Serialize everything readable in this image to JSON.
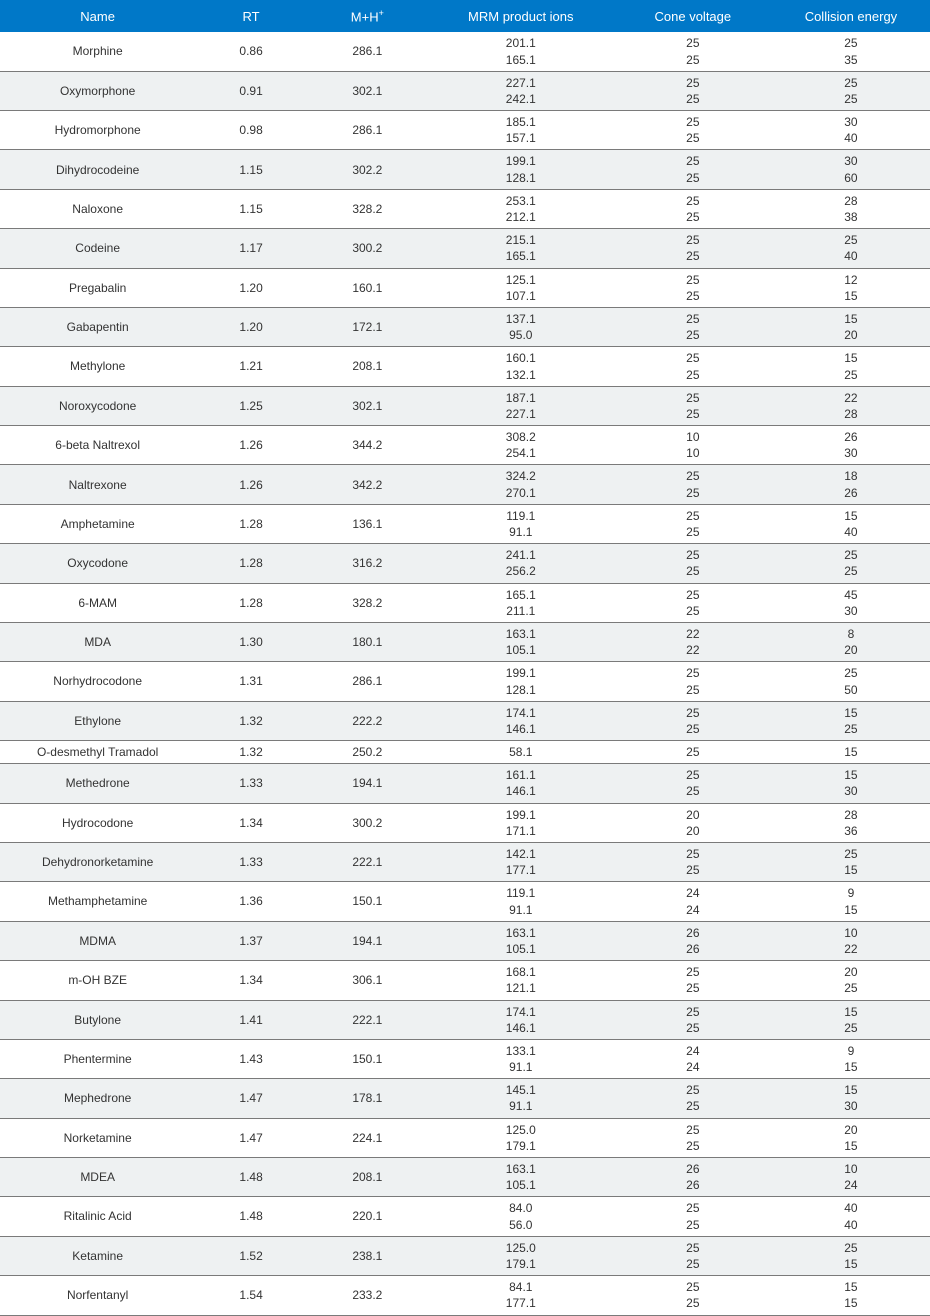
{
  "table": {
    "type": "table",
    "header_bg": "#0078c8",
    "header_text_color": "#ffffff",
    "row_alt_bg": "#eef1f2",
    "border_color": "#7a7a7a",
    "text_color": "#333333",
    "font_size_header": 13,
    "font_size_body": 12,
    "columns": [
      {
        "key": "name",
        "label": "Name",
        "width": "21%"
      },
      {
        "key": "rt",
        "label": "RT",
        "width": "12%"
      },
      {
        "key": "mh",
        "label": "M+H",
        "sup": "+",
        "width": "13%"
      },
      {
        "key": "mrm",
        "label": "MRM product ions",
        "width": "20%"
      },
      {
        "key": "cv",
        "label": "Cone voltage",
        "width": "17%"
      },
      {
        "key": "ce",
        "label": "Collision energy",
        "width": "17%"
      }
    ],
    "rows": [
      {
        "name": "Morphine",
        "rt": "0.86",
        "mh": "286.1",
        "mrm": [
          "201.1",
          "165.1"
        ],
        "cv": [
          "25",
          "25"
        ],
        "ce": [
          "25",
          "35"
        ]
      },
      {
        "name": "Oxymorphone",
        "rt": "0.91",
        "mh": "302.1",
        "mrm": [
          "227.1",
          "242.1"
        ],
        "cv": [
          "25",
          "25"
        ],
        "ce": [
          "25",
          "25"
        ]
      },
      {
        "name": "Hydromorphone",
        "rt": "0.98",
        "mh": "286.1",
        "mrm": [
          "185.1",
          "157.1"
        ],
        "cv": [
          "25",
          "25"
        ],
        "ce": [
          "30",
          "40"
        ]
      },
      {
        "name": "Dihydrocodeine",
        "rt": "1.15",
        "mh": "302.2",
        "mrm": [
          "199.1",
          "128.1"
        ],
        "cv": [
          "25",
          "25"
        ],
        "ce": [
          "30",
          "60"
        ]
      },
      {
        "name": "Naloxone",
        "rt": "1.15",
        "mh": "328.2",
        "mrm": [
          "253.1",
          "212.1"
        ],
        "cv": [
          "25",
          "25"
        ],
        "ce": [
          "28",
          "38"
        ]
      },
      {
        "name": "Codeine",
        "rt": "1.17",
        "mh": "300.2",
        "mrm": [
          "215.1",
          "165.1"
        ],
        "cv": [
          "25",
          "25"
        ],
        "ce": [
          "25",
          "40"
        ]
      },
      {
        "name": "Pregabalin",
        "rt": "1.20",
        "mh": "160.1",
        "mrm": [
          "125.1",
          "107.1"
        ],
        "cv": [
          "25",
          "25"
        ],
        "ce": [
          "12",
          "15"
        ]
      },
      {
        "name": "Gabapentin",
        "rt": "1.20",
        "mh": "172.1",
        "mrm": [
          "137.1",
          "95.0"
        ],
        "cv": [
          "25",
          "25"
        ],
        "ce": [
          "15",
          "20"
        ]
      },
      {
        "name": "Methylone",
        "rt": "1.21",
        "mh": "208.1",
        "mrm": [
          "160.1",
          "132.1"
        ],
        "cv": [
          "25",
          "25"
        ],
        "ce": [
          "15",
          "25"
        ]
      },
      {
        "name": "Noroxycodone",
        "rt": "1.25",
        "mh": "302.1",
        "mrm": [
          "187.1",
          "227.1"
        ],
        "cv": [
          "25",
          "25"
        ],
        "ce": [
          "22",
          "28"
        ]
      },
      {
        "name": "6-beta Naltrexol",
        "rt": "1.26",
        "mh": "344.2",
        "mrm": [
          "308.2",
          "254.1"
        ],
        "cv": [
          "10",
          "10"
        ],
        "ce": [
          "26",
          "30"
        ]
      },
      {
        "name": "Naltrexone",
        "rt": "1.26",
        "mh": "342.2",
        "mrm": [
          "324.2",
          "270.1"
        ],
        "cv": [
          "25",
          "25"
        ],
        "ce": [
          "18",
          "26"
        ]
      },
      {
        "name": "Amphetamine",
        "rt": "1.28",
        "mh": "136.1",
        "mrm": [
          "119.1",
          "91.1"
        ],
        "cv": [
          "25",
          "25"
        ],
        "ce": [
          "15",
          "40"
        ]
      },
      {
        "name": "Oxycodone",
        "rt": "1.28",
        "mh": "316.2",
        "mrm": [
          "241.1",
          "256.2"
        ],
        "cv": [
          "25",
          "25"
        ],
        "ce": [
          "25",
          "25"
        ]
      },
      {
        "name": "6-MAM",
        "rt": "1.28",
        "mh": "328.2",
        "mrm": [
          "165.1",
          "211.1"
        ],
        "cv": [
          "25",
          "25"
        ],
        "ce": [
          "45",
          "30"
        ]
      },
      {
        "name": "MDA",
        "rt": "1.30",
        "mh": "180.1",
        "mrm": [
          "163.1",
          "105.1"
        ],
        "cv": [
          "22",
          "22"
        ],
        "ce": [
          "8",
          "20"
        ]
      },
      {
        "name": "Norhydrocodone",
        "rt": "1.31",
        "mh": "286.1",
        "mrm": [
          "199.1",
          "128.1"
        ],
        "cv": [
          "25",
          "25"
        ],
        "ce": [
          "25",
          "50"
        ]
      },
      {
        "name": "Ethylone",
        "rt": "1.32",
        "mh": "222.2",
        "mrm": [
          "174.1",
          "146.1"
        ],
        "cv": [
          "25",
          "25"
        ],
        "ce": [
          "15",
          "25"
        ]
      },
      {
        "name": "O-desmethyl Tramadol",
        "rt": "1.32",
        "mh": "250.2",
        "mrm": [
          "58.1"
        ],
        "cv": [
          "25"
        ],
        "ce": [
          "15"
        ]
      },
      {
        "name": "Methedrone",
        "rt": "1.33",
        "mh": "194.1",
        "mrm": [
          "161.1",
          "146.1"
        ],
        "cv": [
          "25",
          "25"
        ],
        "ce": [
          "15",
          "30"
        ]
      },
      {
        "name": "Hydrocodone",
        "rt": "1.34",
        "mh": "300.2",
        "mrm": [
          "199.1",
          "171.1"
        ],
        "cv": [
          "20",
          "20"
        ],
        "ce": [
          "28",
          "36"
        ]
      },
      {
        "name": "Dehydronorketamine",
        "rt": "1.33",
        "mh": "222.1",
        "mrm": [
          "142.1",
          "177.1"
        ],
        "cv": [
          "25",
          "25"
        ],
        "ce": [
          "25",
          "15"
        ]
      },
      {
        "name": "Methamphetamine",
        "rt": "1.36",
        "mh": "150.1",
        "mrm": [
          "119.1",
          "91.1"
        ],
        "cv": [
          "24",
          "24"
        ],
        "ce": [
          "9",
          "15"
        ]
      },
      {
        "name": "MDMA",
        "rt": "1.37",
        "mh": "194.1",
        "mrm": [
          "163.1",
          "105.1"
        ],
        "cv": [
          "26",
          "26"
        ],
        "ce": [
          "10",
          "22"
        ]
      },
      {
        "name": "m-OH BZE",
        "rt": "1.34",
        "mh": "306.1",
        "mrm": [
          "168.1",
          "121.1"
        ],
        "cv": [
          "25",
          "25"
        ],
        "ce": [
          "20",
          "25"
        ]
      },
      {
        "name": "Butylone",
        "rt": "1.41",
        "mh": "222.1",
        "mrm": [
          "174.1",
          "146.1"
        ],
        "cv": [
          "25",
          "25"
        ],
        "ce": [
          "15",
          "25"
        ]
      },
      {
        "name": "Phentermine",
        "rt": "1.43",
        "mh": "150.1",
        "mrm": [
          "133.1",
          "91.1"
        ],
        "cv": [
          "24",
          "24"
        ],
        "ce": [
          "9",
          "15"
        ]
      },
      {
        "name": "Mephedrone",
        "rt": "1.47",
        "mh": "178.1",
        "mrm": [
          "145.1",
          "91.1"
        ],
        "cv": [
          "25",
          "25"
        ],
        "ce": [
          "15",
          "30"
        ]
      },
      {
        "name": "Norketamine",
        "rt": "1.47",
        "mh": "224.1",
        "mrm": [
          "125.0",
          "179.1"
        ],
        "cv": [
          "25",
          "25"
        ],
        "ce": [
          "20",
          "15"
        ]
      },
      {
        "name": "MDEA",
        "rt": "1.48",
        "mh": "208.1",
        "mrm": [
          "163.1",
          "105.1"
        ],
        "cv": [
          "26",
          "26"
        ],
        "ce": [
          "10",
          "24"
        ]
      },
      {
        "name": "Ritalinic Acid",
        "rt": "1.48",
        "mh": "220.1",
        "mrm": [
          "84.0",
          "56.0"
        ],
        "cv": [
          "25",
          "25"
        ],
        "ce": [
          "40",
          "40"
        ]
      },
      {
        "name": "Ketamine",
        "rt": "1.52",
        "mh": "238.1",
        "mrm": [
          "125.0",
          "179.1"
        ],
        "cv": [
          "25",
          "25"
        ],
        "ce": [
          "25",
          "15"
        ]
      },
      {
        "name": "Norfentanyl",
        "rt": "1.54",
        "mh": "233.2",
        "mrm": [
          "84.1",
          "177.1"
        ],
        "cv": [
          "25",
          "25"
        ],
        "ce": [
          "15",
          "15"
        ]
      }
    ]
  }
}
